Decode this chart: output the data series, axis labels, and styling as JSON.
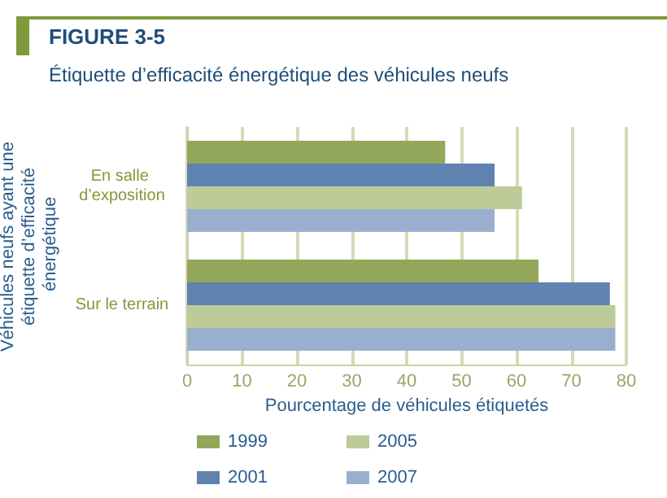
{
  "chart_data": {
    "type": "bar",
    "orientation": "horizontal",
    "title": "FIGURE 3-5",
    "subtitle": "Étiquette d’efficacité énergétique des véhicules neufs",
    "xlabel": "Pourcentage de véhicules étiquetés",
    "ylabel": "Véhicules neufs ayant une étiquette d’efficacité énergétique",
    "categories": [
      "En salle d’exposition",
      "Sur le terrain"
    ],
    "series": [
      {
        "name": "1999",
        "color": "#93a75a",
        "values": [
          47,
          64
        ]
      },
      {
        "name": "2001",
        "color": "#5f82b0",
        "values": [
          56,
          77
        ]
      },
      {
        "name": "2005",
        "color": "#bccb98",
        "values": [
          61,
          78
        ]
      },
      {
        "name": "2007",
        "color": "#9aafd0",
        "values": [
          56,
          78
        ]
      }
    ],
    "xlim": [
      0,
      80
    ],
    "xticks": [
      0,
      10,
      20,
      30,
      40,
      50,
      60,
      70,
      80
    ],
    "grid": "x",
    "legend": "bottom"
  }
}
